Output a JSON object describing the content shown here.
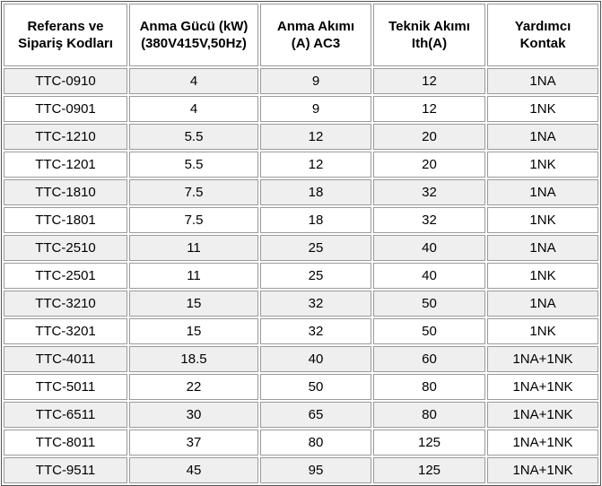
{
  "table": {
    "header": [
      "Referans ve\nSipariş Kodları",
      "Anma Gücü (kW)\n(380V415V,50Hz)",
      "Anma Akımı\n(A) AC3",
      "Teknik Akımı\nIth(A)",
      "Yardımcı\nKontak"
    ],
    "rows": [
      [
        "TTC-0910",
        4,
        9,
        12,
        "1NA"
      ],
      [
        "TTC-0901",
        4,
        9,
        12,
        "1NK"
      ],
      [
        "TTC-1210",
        5.5,
        12,
        20,
        "1NA"
      ],
      [
        "TTC-1201",
        5.5,
        12,
        20,
        "1NK"
      ],
      [
        "TTC-1810",
        7.5,
        18,
        32,
        "1NA"
      ],
      [
        "TTC-1801",
        7.5,
        18,
        32,
        "1NK"
      ],
      [
        "TTC-2510",
        11,
        25,
        40,
        "1NA"
      ],
      [
        "TTC-2501",
        11,
        25,
        40,
        "1NK"
      ],
      [
        "TTC-3210",
        15,
        32,
        50,
        "1NA"
      ],
      [
        "TTC-3201",
        15,
        32,
        50,
        "1NK"
      ],
      [
        "TTC-4011",
        18.5,
        40,
        60,
        "1NA+1NK"
      ],
      [
        "TTC-5011",
        22,
        50,
        80,
        "1NA+1NK"
      ],
      [
        "TTC-6511",
        30,
        65,
        80,
        "1NA+1NK"
      ],
      [
        "TTC-8011",
        37,
        80,
        125,
        "1NA+1NK"
      ],
      [
        "TTC-9511",
        45,
        95,
        125,
        "1NA+1NK"
      ]
    ]
  }
}
